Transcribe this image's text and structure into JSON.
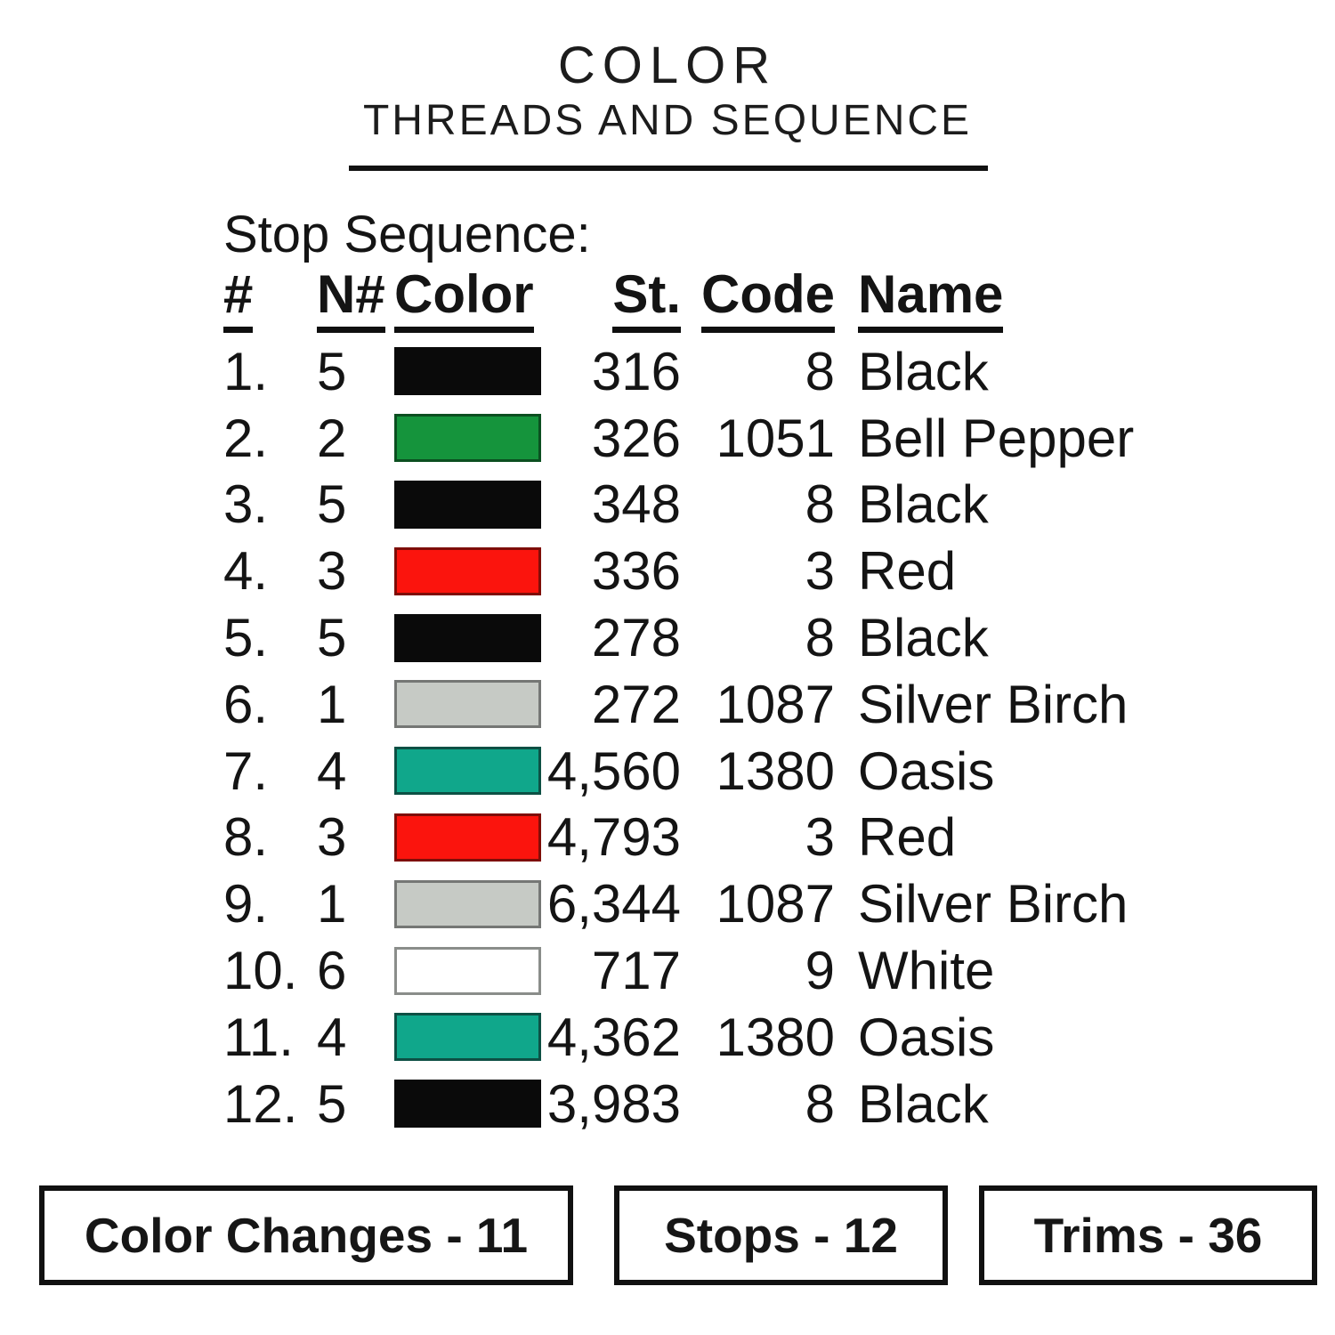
{
  "page": {
    "title": "COLOR",
    "subtitle": "THREADS AND SEQUENCE",
    "section_label": "Stop Sequence:"
  },
  "table": {
    "columns": [
      "#",
      "N#",
      "Color",
      "St.",
      "Code",
      "Name"
    ],
    "rows": [
      {
        "num": "1.",
        "needle": "5",
        "swatch_color": "#0a0a0a",
        "swatch_border": "#0a0a0a",
        "stitches": "316",
        "code": "8",
        "name": "Black"
      },
      {
        "num": "2.",
        "needle": "2",
        "swatch_color": "#15943c",
        "swatch_border": "#0b4f20",
        "stitches": "326",
        "code": "1051",
        "name": "Bell Pepper"
      },
      {
        "num": "3.",
        "needle": "5",
        "swatch_color": "#0a0a0a",
        "swatch_border": "#0a0a0a",
        "stitches": "348",
        "code": "8",
        "name": "Black"
      },
      {
        "num": "4.",
        "needle": "3",
        "swatch_color": "#fb140d",
        "swatch_border": "#7e0d07",
        "stitches": "336",
        "code": "3",
        "name": "Red"
      },
      {
        "num": "5.",
        "needle": "5",
        "swatch_color": "#0a0a0a",
        "swatch_border": "#0a0a0a",
        "stitches": "278",
        "code": "8",
        "name": "Black"
      },
      {
        "num": "6.",
        "needle": "1",
        "swatch_color": "#c6cac5",
        "swatch_border": "#757775",
        "stitches": "272",
        "code": "1087",
        "name": "Silver Birch"
      },
      {
        "num": "7.",
        "needle": "4",
        "swatch_color": "#10a78b",
        "swatch_border": "#0d5044",
        "stitches": "4,560",
        "code": "1380",
        "name": "Oasis"
      },
      {
        "num": "8.",
        "needle": "3",
        "swatch_color": "#fb140d",
        "swatch_border": "#7e0d07",
        "stitches": "4,793",
        "code": "3",
        "name": "Red"
      },
      {
        "num": "9.",
        "needle": "1",
        "swatch_color": "#c6cac5",
        "swatch_border": "#757775",
        "stitches": "6,344",
        "code": "1087",
        "name": "Silver Birch"
      },
      {
        "num": "10.",
        "needle": "6",
        "swatch_color": "#ffffff",
        "swatch_border": "#8a8d8a",
        "stitches": "717",
        "code": "9",
        "name": "White"
      },
      {
        "num": "11.",
        "needle": "4",
        "swatch_color": "#10a78b",
        "swatch_border": "#0d5044",
        "stitches": "4,362",
        "code": "1380",
        "name": "Oasis"
      },
      {
        "num": "12.",
        "needle": "5",
        "swatch_color": "#0a0a0a",
        "swatch_border": "#0a0a0a",
        "stitches": "3,983",
        "code": "8",
        "name": "Black"
      }
    ]
  },
  "footer": {
    "boxes": [
      {
        "label": "Color Changes - 11"
      },
      {
        "label": "Stops - 12"
      },
      {
        "label": "Trims - 36"
      }
    ]
  },
  "colors": {
    "background": "#ffffff",
    "text": "#141414",
    "title_rule": "#111111",
    "box_border": "#111111"
  }
}
